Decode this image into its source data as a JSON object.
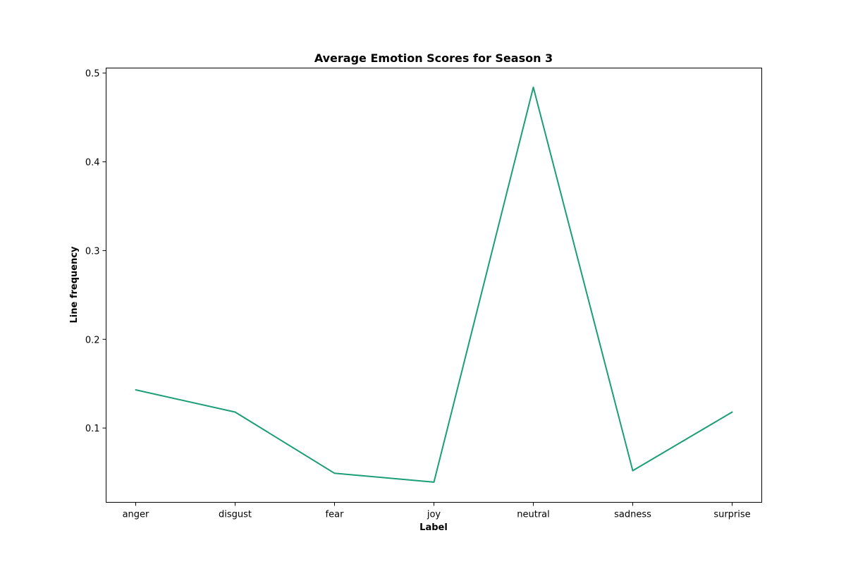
{
  "chart_data": {
    "type": "line",
    "title": "Average Emotion Scores for Season 3",
    "xlabel": "Label",
    "ylabel": "Line frequency",
    "categories": [
      "anger",
      "disgust",
      "fear",
      "joy",
      "neutral",
      "sadness",
      "surprise"
    ],
    "series": [
      {
        "values": [
          0.143,
          0.118,
          0.049,
          0.039,
          0.484,
          0.052,
          0.118
        ],
        "color": "#1b9e77"
      }
    ],
    "yticks": [
      0.1,
      0.2,
      0.3,
      0.4,
      0.5
    ],
    "ytick_labels": [
      "0.1",
      "0.2",
      "0.3",
      "0.4",
      "0.5"
    ],
    "ylim": [
      0.0163,
      0.5057
    ],
    "grid": false,
    "legend": "none"
  }
}
